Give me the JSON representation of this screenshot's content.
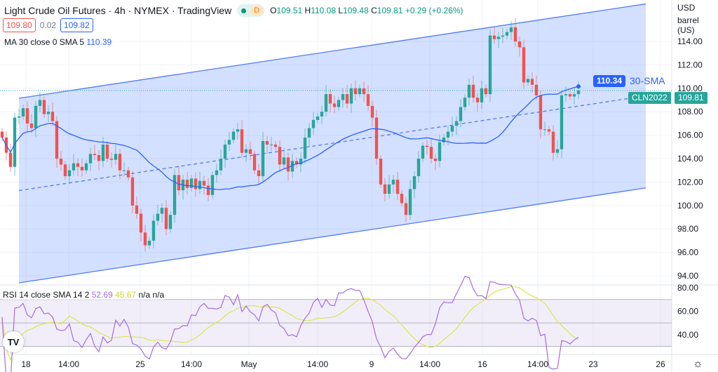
{
  "header": {
    "title": "Light Crude Oil Futures · 4h · NYMEX · TradingView",
    "badge": "D",
    "ohlc": {
      "o_label": "O",
      "o": "109.51",
      "h_label": "H",
      "h": "110.08",
      "l_label": "L",
      "l": "109.48",
      "c_label": "C",
      "c": "109.81",
      "change": "+0.29 (+0.26%)"
    },
    "bid": "109.80",
    "spread": "0.02",
    "ask": "109.82",
    "ma_legend": "MA 30 close 0 SMA 5",
    "ma_value": "110.39"
  },
  "rsi_legend": {
    "label": "RSI 14 close SMA 14 2",
    "rsi": "52.69",
    "sma": "45.67",
    "na1": "n/a",
    "na2": "n/a"
  },
  "price_axis": {
    "currency": "USD",
    "unit": "barrel (US)",
    "ticks": [
      "114.00",
      "112.00",
      "110.00",
      "108.00",
      "106.00",
      "104.00",
      "102.00",
      "100.00",
      "98.00",
      "96.00",
      "94.00"
    ]
  },
  "rsi_axis": {
    "ticks": [
      "80.00",
      "60.00",
      "40.00"
    ]
  },
  "time_axis": [
    "18",
    "14:00",
    "25",
    "14:00",
    "May",
    "14:00",
    "9",
    "14:00",
    "16",
    "14:00",
    "23",
    "26"
  ],
  "tags": {
    "sma_value": "110.34",
    "sma_label": "30-SMA",
    "symbol": "CLN2022",
    "last": "109.81"
  },
  "colors": {
    "up": "#26a69a",
    "down": "#ef5350",
    "sma": "#2962ff",
    "channel": "#4f7cf7",
    "rsi": "#a46ee0",
    "rsi_sma": "#dbe85a"
  },
  "chart_data": {
    "type": "candlestick",
    "ylim": [
      93,
      117.5
    ],
    "close": [
      105.8,
      104.5,
      103.3,
      107.5,
      107.6,
      108.3,
      107.0,
      106.6,
      108.5,
      109.0,
      107.8,
      108.0,
      107.2,
      104.0,
      103.5,
      102.5,
      103.0,
      103.6,
      103.3,
      103.0,
      103.6,
      104.4,
      104.3,
      103.8,
      105.2,
      104.0,
      103.9,
      104.4,
      103.0,
      103.0,
      102.4,
      100.0,
      99.3,
      97.7,
      96.6,
      97.0,
      98.7,
      99.3,
      99.8,
      98.0,
      99.2,
      102.6,
      101.3,
      102.2,
      101.5,
      102.3,
      101.4,
      102.1,
      101.7,
      100.9,
      102.6,
      103.0,
      104.0,
      105.2,
      105.6,
      106.3,
      106.5,
      104.5,
      104.8,
      104.4,
      103.0,
      102.5,
      105.5,
      105.2,
      105.2,
      105.0,
      103.5,
      104.1,
      102.9,
      103.8,
      103.5,
      104.0,
      105.8,
      106.6,
      107.3,
      107.6,
      108.0,
      109.5,
      108.7,
      108.4,
      109.0,
      109.5,
      108.7,
      110.0,
      109.5,
      110.0,
      109.5,
      108.5,
      107.5,
      104.0,
      101.8,
      101.0,
      101.8,
      102.2,
      101.0,
      100.2,
      99.2,
      101.4,
      102.5,
      104.0,
      105.1,
      105.0,
      104.0,
      103.8,
      105.4,
      105.8,
      106.3,
      106.8,
      107.2,
      108.4,
      109.2,
      110.3,
      109.2,
      108.8,
      110.0,
      109.5,
      114.5,
      114.2,
      114.4,
      114.5,
      114.8,
      115.2,
      114.0,
      113.5,
      110.5,
      110.8,
      110.3,
      109.4,
      106.5,
      106.5,
      106.3,
      104.5,
      104.8,
      109.4,
      109.5,
      109.3,
      109.5,
      109.81
    ],
    "sma_period": 30,
    "rsi_period": 14,
    "rsi_sma_period": 14,
    "channel": {
      "start_index": 4,
      "end_index": 153,
      "upper": [
        109.15,
        117.2
      ],
      "lower": [
        93.4,
        101.5
      ]
    },
    "rsi_bands": [
      70,
      50,
      30
    ]
  }
}
